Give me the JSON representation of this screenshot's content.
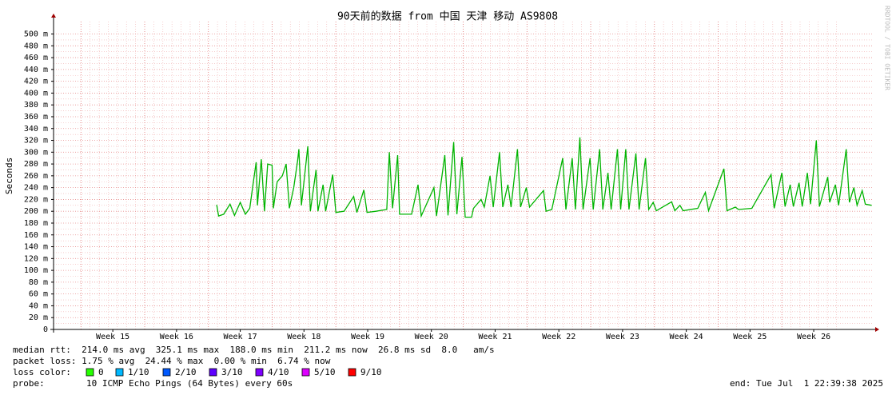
{
  "chart_data": {
    "type": "line",
    "title": "90天前的数据 from 中国 天津 移动 AS9808",
    "y_label": "Seconds",
    "watermark": "RRDTOOL / TOBI OETIKER",
    "xlim": [
      14.07,
      26.94
    ],
    "xticks": [
      {
        "value": 15,
        "label": "Week 15"
      },
      {
        "value": 16,
        "label": "Week 16"
      },
      {
        "value": 17,
        "label": "Week 17"
      },
      {
        "value": 18,
        "label": "Week 18"
      },
      {
        "value": 19,
        "label": "Week 19"
      },
      {
        "value": 20,
        "label": "Week 20"
      },
      {
        "value": 21,
        "label": "Week 21"
      },
      {
        "value": 22,
        "label": "Week 22"
      },
      {
        "value": 23,
        "label": "Week 23"
      },
      {
        "value": 24,
        "label": "Week 24"
      },
      {
        "value": 25,
        "label": "Week 25"
      },
      {
        "value": 26,
        "label": "Week 26"
      }
    ],
    "ylim": [
      0,
      521
    ],
    "yticks": [
      0,
      {
        "value": 20,
        "label": "20 m"
      },
      {
        "value": 40,
        "label": "40 m"
      },
      {
        "value": 60,
        "label": "60 m"
      },
      {
        "value": 80,
        "label": "80 m"
      },
      {
        "value": 100,
        "label": "100 m"
      },
      {
        "value": 120,
        "label": "120 m"
      },
      {
        "value": 140,
        "label": "140 m"
      },
      {
        "value": 160,
        "label": "160 m"
      },
      {
        "value": 180,
        "label": "180 m"
      },
      {
        "value": 200,
        "label": "200 m"
      },
      {
        "value": 220,
        "label": "220 m"
      },
      {
        "value": 240,
        "label": "240 m"
      },
      {
        "value": 260,
        "label": "260 m"
      },
      {
        "value": 280,
        "label": "280 m"
      },
      {
        "value": 300,
        "label": "300 m"
      },
      {
        "value": 320,
        "label": "320 m"
      },
      {
        "value": 340,
        "label": "340 m"
      },
      {
        "value": 360,
        "label": "360 m"
      },
      {
        "value": 380,
        "label": "380 m"
      },
      {
        "value": 400,
        "label": "400 m"
      },
      {
        "value": 420,
        "label": "420 m"
      },
      {
        "value": 440,
        "label": "440 m"
      },
      {
        "value": 460,
        "label": "460 m"
      },
      {
        "value": 480,
        "label": "480 m"
      },
      {
        "value": 500,
        "label": "500 m"
      }
    ],
    "grid": true,
    "color": "#00b400",
    "x": [
      16.63,
      16.66,
      16.74,
      16.84,
      16.91,
      17.0,
      17.08,
      17.15,
      17.2,
      17.25,
      17.27,
      17.33,
      17.38,
      17.43,
      17.5,
      17.52,
      17.58,
      17.66,
      17.72,
      17.77,
      17.84,
      17.9,
      17.92,
      17.96,
      18.06,
      18.1,
      18.19,
      18.22,
      18.3,
      18.34,
      18.45,
      18.5,
      18.63,
      18.78,
      18.83,
      18.94,
      18.99,
      19.13,
      19.3,
      19.34,
      19.39,
      19.47,
      19.5,
      19.69,
      19.79,
      19.84,
      20.04,
      20.08,
      20.21,
      20.26,
      20.35,
      20.4,
      20.48,
      20.53,
      20.63,
      20.66,
      20.78,
      20.83,
      20.92,
      20.97,
      21.07,
      21.12,
      21.2,
      21.25,
      21.35,
      21.4,
      21.49,
      21.54,
      21.76,
      21.8,
      21.89,
      22.06,
      22.11,
      22.21,
      22.26,
      22.33,
      22.38,
      22.49,
      22.54,
      22.64,
      22.69,
      22.77,
      22.82,
      22.92,
      22.97,
      23.05,
      23.1,
      23.21,
      23.26,
      23.36,
      23.41,
      23.48,
      23.53,
      23.77,
      23.82,
      23.9,
      23.95,
      24.18,
      24.3,
      24.35,
      24.59,
      24.64,
      24.77,
      24.82,
      25.03,
      25.33,
      25.38,
      25.5,
      25.55,
      25.63,
      25.68,
      25.77,
      25.82,
      25.9,
      25.95,
      26.04,
      26.09,
      26.22,
      26.25,
      26.34,
      26.39,
      26.51,
      26.56,
      26.63,
      26.68,
      26.76,
      26.81,
      26.91
    ],
    "values": [
      211,
      192,
      195,
      212,
      193,
      215,
      195,
      205,
      245,
      283,
      210,
      288,
      200,
      280,
      278,
      205,
      250,
      260,
      280,
      205,
      240,
      285,
      305,
      210,
      310,
      200,
      270,
      200,
      245,
      200,
      262,
      198,
      200,
      225,
      198,
      236,
      198,
      200,
      203,
      300,
      205,
      295,
      195,
      195,
      245,
      192,
      240,
      192,
      295,
      193,
      317,
      195,
      292,
      190,
      190,
      205,
      220,
      207,
      260,
      207,
      300,
      207,
      245,
      207,
      305,
      207,
      240,
      207,
      235,
      200,
      203,
      290,
      203,
      290,
      203,
      325,
      203,
      290,
      203,
      305,
      203,
      265,
      203,
      305,
      203,
      305,
      203,
      298,
      203,
      290,
      203,
      215,
      201,
      216,
      201,
      210,
      201,
      205,
      232,
      201,
      272,
      201,
      207,
      203,
      205,
      262,
      205,
      265,
      208,
      245,
      208,
      248,
      208,
      265,
      212,
      320,
      208,
      258,
      215,
      245,
      210,
      305,
      215,
      240,
      210,
      235,
      212,
      210
    ],
    "stats": [
      "median rtt:  214.0 ms avg  325.1 ms max  188.0 ms min  211.2 ms now  26.8 ms sd  8.0   am/s",
      "packet loss: 1.75 % avg  24.44 % max  0.00 % min  6.74 % now"
    ],
    "loss_color_label": "loss color:",
    "loss_colors": [
      {
        "name": "0",
        "color": "#26ff00"
      },
      {
        "name": "1/10",
        "color": "#00b8ff"
      },
      {
        "name": "2/10",
        "color": "#0059ff"
      },
      {
        "name": "3/10",
        "color": "#5e00ff"
      },
      {
        "name": "4/10",
        "color": "#7e00ff"
      },
      {
        "name": "5/10",
        "color": "#dd00ff"
      },
      {
        "name": "9/10",
        "color": "#ff0000"
      }
    ],
    "probe_label": "probe:",
    "probe": "10 ICMP Echo Pings (64 Bytes) every 60s",
    "end": "end: Tue Jul  1 22:39:38 2025"
  }
}
